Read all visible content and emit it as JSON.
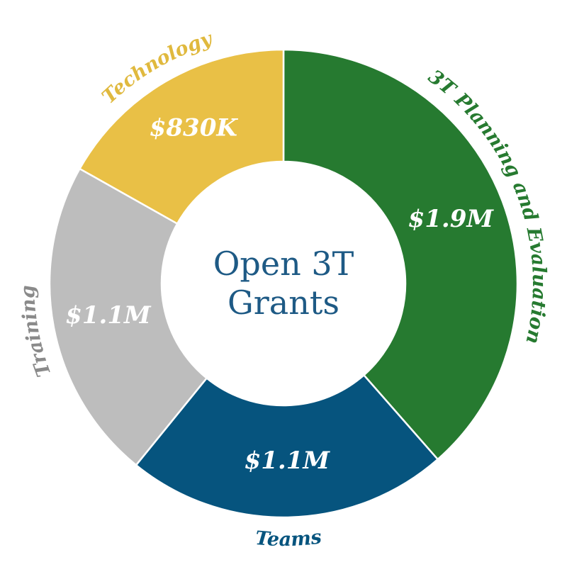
{
  "chart_data": {
    "type": "donut",
    "title": "Open 3T Grants",
    "categories": [
      "3T Planning and Evaluation",
      "Teams",
      "Training",
      "Technology"
    ],
    "values": [
      1900000,
      1100000,
      1100000,
      830000
    ],
    "value_labels": [
      "$1.9M",
      "$1.1M",
      "$1.1M",
      "$830K"
    ],
    "colors": [
      "#267a30",
      "#06547e",
      "#bdbdbd",
      "#e9c046"
    ],
    "label_colors": [
      "#267a30",
      "#06547e",
      "#8a8a8a",
      "#e0b93e"
    ]
  }
}
